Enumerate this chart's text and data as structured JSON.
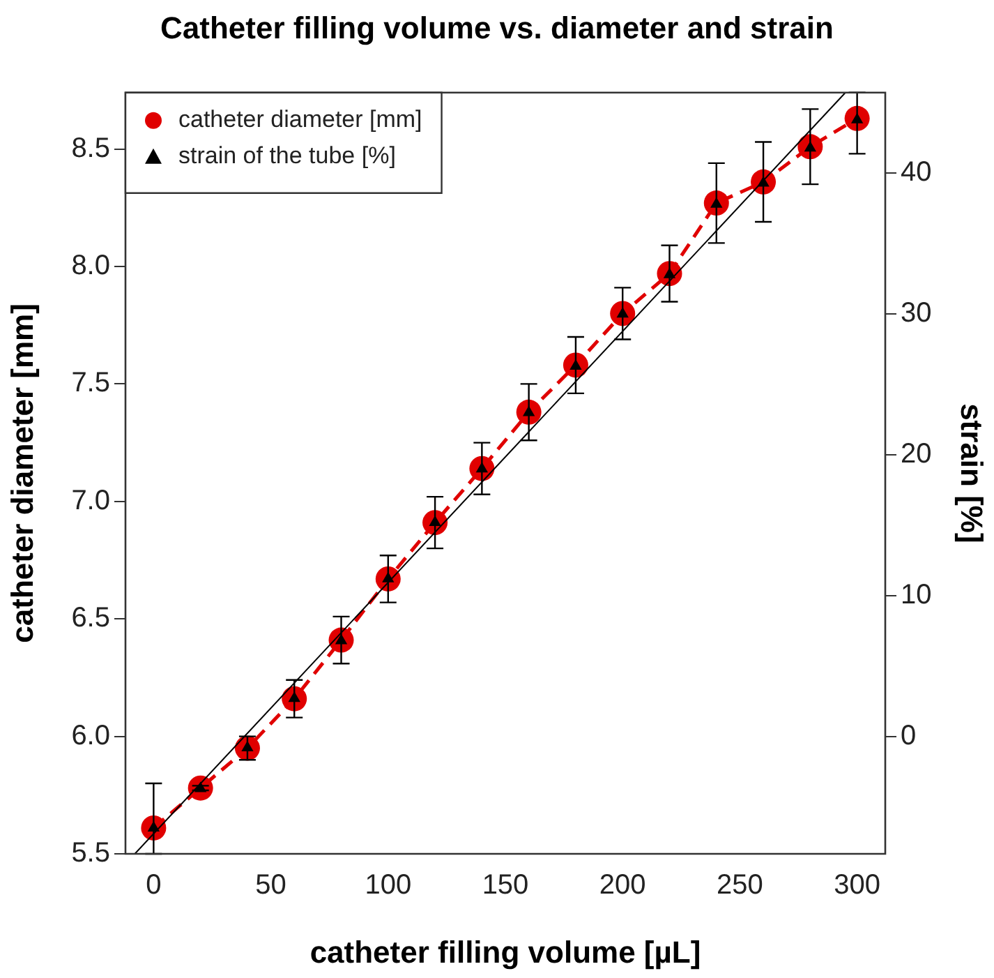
{
  "chart_data": {
    "type": "line",
    "title": "Catheter filling volume vs. diameter and strain",
    "xlabel": "catheter filling volume [µL]",
    "ylabel": "catheter diameter [mm]",
    "y2label": "strain [%]",
    "x": [
      0,
      20,
      40,
      60,
      80,
      100,
      120,
      140,
      160,
      180,
      200,
      220,
      240,
      260,
      280,
      300
    ],
    "series": [
      {
        "name": "catheter diameter [mm]",
        "color": "#e00000",
        "marker": "circle",
        "line_style": "dashed",
        "values": [
          5.61,
          5.78,
          5.95,
          6.16,
          6.41,
          6.67,
          6.91,
          7.14,
          7.38,
          7.58,
          7.8,
          7.97,
          8.27,
          8.36,
          8.51,
          8.63
        ],
        "errors": [
          [
            5.5,
            5.8
          ],
          0.01,
          0.05,
          0.08,
          0.1,
          0.1,
          0.11,
          0.11,
          0.12,
          0.12,
          0.11,
          0.12,
          0.17,
          0.17,
          0.16,
          [
            8.48,
            8.74
          ]
        ]
      },
      {
        "name": "strain of the tube [%]",
        "type": "scatter",
        "axis": "y2",
        "color": "#000000",
        "marker": "triangle",
        "values": [
          -6.5,
          -3.7,
          -0.8,
          2.7,
          6.8,
          11.2,
          15.2,
          19.0,
          23.0,
          26.3,
          30.0,
          32.8,
          37.8,
          39.3,
          41.8,
          43.8
        ]
      },
      {
        "type": "line",
        "color": "#000000",
        "marker": "none",
        "line_style": "solid",
        "x": [
          -8,
          295
        ],
        "values": [
          5.5,
          8.74
        ]
      }
    ],
    "xlim": [
      -12,
      312
    ],
    "xticks": [
      0,
      50,
      100,
      150,
      200,
      250,
      300
    ],
    "ylim": [
      5.5,
      8.74
    ],
    "yticks": [
      5.5,
      {
        "value": 6,
        "label": "6.0"
      },
      6.5,
      {
        "value": 7,
        "label": "7.0"
      },
      7.5,
      {
        "value": 8,
        "label": "8.0"
      },
      8.5
    ],
    "y2lim": [
      -8.33,
      45.73
    ],
    "y2ticks": [
      0,
      10,
      20,
      30,
      40
    ],
    "legend": "top left",
    "grid": false
  }
}
